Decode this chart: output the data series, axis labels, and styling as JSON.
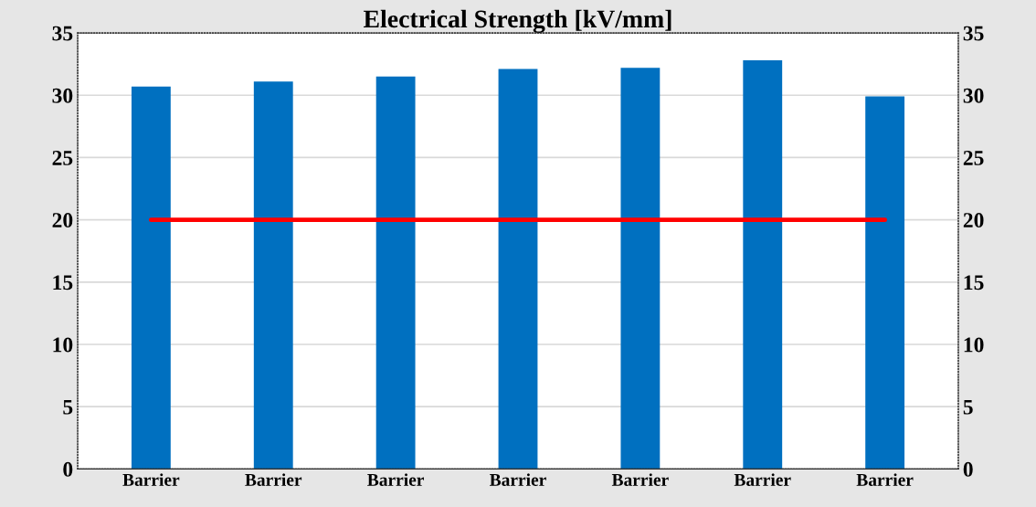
{
  "chart_data": {
    "type": "bar",
    "title": "Electrical Strength [kV/mm]",
    "categories": [
      "Barrier",
      "Barrier",
      "Barrier",
      "Barrier",
      "Barrier",
      "Barrier",
      "Barrier"
    ],
    "series": [
      {
        "color": "#0070c0",
        "values": [
          30.7,
          31.1,
          31.5,
          32.1,
          32.2,
          32.8,
          29.9
        ]
      },
      {
        "type": "line",
        "color": "#ff0000",
        "values": [
          20,
          20,
          20,
          20,
          20,
          20,
          20
        ]
      }
    ],
    "ylim": [
      0,
      35
    ],
    "yticks": [
      0,
      5,
      10,
      15,
      20,
      25,
      30,
      35
    ],
    "y2lim": [
      0,
      35
    ],
    "y2ticks": [
      0,
      5,
      10,
      15,
      20,
      25,
      30,
      35
    ],
    "grid": "y",
    "legend": false
  }
}
